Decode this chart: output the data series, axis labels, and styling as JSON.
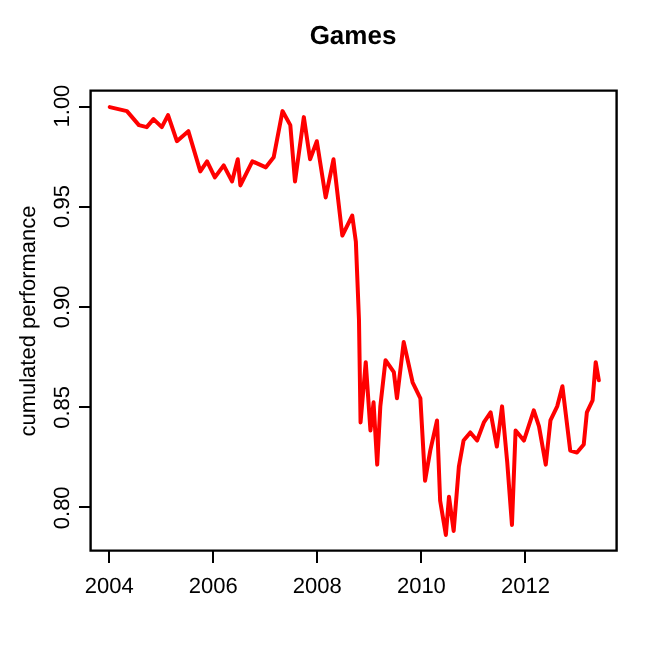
{
  "chart_data": {
    "type": "line",
    "title": "Games",
    "ylabel": "cumulated performance",
    "xlim": [
      2003.65,
      2013.76
    ],
    "ylim": [
      0.7785,
      1.0075
    ],
    "xticks": [
      2004,
      2006,
      2008,
      2010,
      2012
    ],
    "yticks": [
      {
        "value": 0.8,
        "label": "0.80"
      },
      {
        "value": 0.85,
        "label": "0.85"
      },
      {
        "value": 0.9,
        "label": "0.90"
      },
      {
        "value": 0.95,
        "label": "0.95"
      },
      {
        "value": 1.0,
        "label": "1.00"
      }
    ],
    "grid": false,
    "legend": false,
    "x": [
      2004.03,
      2004.36,
      2004.59,
      2004.74,
      2004.87,
      2005.03,
      2005.15,
      2005.32,
      2005.54,
      2005.77,
      2005.9,
      2006.05,
      2006.22,
      2006.38,
      2006.49,
      2006.54,
      2006.77,
      2007.03,
      2007.18,
      2007.35,
      2007.5,
      2007.59,
      2007.76,
      2007.88,
      2008.01,
      2008.18,
      2008.33,
      2008.5,
      2008.69,
      2008.76,
      2008.82,
      2008.85,
      2008.95,
      2009.04,
      2009.1,
      2009.17,
      2009.23,
      2009.33,
      2009.49,
      2009.55,
      2009.68,
      2009.85,
      2010.0,
      2010.09,
      2010.19,
      2010.32,
      2010.38,
      2010.49,
      2010.55,
      2010.64,
      2010.74,
      2010.83,
      2010.96,
      2011.09,
      2011.22,
      2011.35,
      2011.47,
      2011.57,
      2011.67,
      2011.76,
      2011.83,
      2011.99,
      2012.18,
      2012.28,
      2012.41,
      2012.5,
      2012.63,
      2012.73,
      2012.88,
      2013.01,
      2013.14,
      2013.2,
      2013.31,
      2013.37,
      2013.43
    ],
    "series": [
      {
        "color": "#ff0000",
        "values": [
          0.999,
          0.997,
          0.99,
          0.989,
          0.993,
          0.989,
          0.995,
          0.982,
          0.987,
          0.967,
          0.972,
          0.964,
          0.97,
          0.962,
          0.973,
          0.96,
          0.972,
          0.969,
          0.974,
          0.997,
          0.99,
          0.962,
          0.994,
          0.973,
          0.982,
          0.954,
          0.973,
          0.935,
          0.945,
          0.932,
          0.893,
          0.842,
          0.872,
          0.838,
          0.852,
          0.821,
          0.85,
          0.873,
          0.867,
          0.854,
          0.882,
          0.862,
          0.854,
          0.813,
          0.828,
          0.843,
          0.803,
          0.786,
          0.805,
          0.788,
          0.82,
          0.833,
          0.837,
          0.833,
          0.842,
          0.847,
          0.83,
          0.85,
          0.822,
          0.791,
          0.838,
          0.833,
          0.848,
          0.84,
          0.821,
          0.843,
          0.85,
          0.86,
          0.828,
          0.827,
          0.831,
          0.847,
          0.853,
          0.872,
          0.863
        ]
      }
    ]
  }
}
